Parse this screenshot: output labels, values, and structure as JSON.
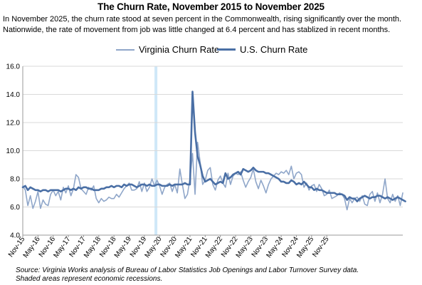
{
  "chart_data": {
    "type": "line",
    "title": "The Churn Rate, November 2015 to November 2025",
    "subtitle": "In November 2025, the churn rate stood at seven percent in the Commonwealth, rising significantly over the month. Nationwide, the rate of movement from job was little changed at 6.4 percent and has stablized in recent months.",
    "source": "Source: Virginia Works analysis of Bureau of Labor Statistics Job Openings and Labor Turnover Survey data.",
    "note": "Shaded areas represent economic recessions.",
    "ylim": [
      4.0,
      16.0
    ],
    "yticks": [
      "4.0",
      "6.0",
      "8.0",
      "10.0",
      "12.0",
      "14.0",
      "16.0"
    ],
    "ytick_values": [
      4,
      6,
      8,
      10,
      12,
      14,
      16
    ],
    "x_tick_labels": [
      "Nov-15",
      "May-16",
      "Nov-16",
      "May-17",
      "Nov-17",
      "May-18",
      "Nov-18",
      "May-19",
      "Nov-19",
      "May-20",
      "Nov-20",
      "May-21",
      "Nov-21",
      "May-22",
      "Nov-22",
      "May-23",
      "Nov-23",
      "May-24",
      "Nov-24",
      "May-25",
      "Nov-25"
    ],
    "recession": {
      "start": "Mar-20",
      "end": "Apr-20",
      "color": "#cfe8f8"
    },
    "grid": true,
    "legend_position": "top-center",
    "series": [
      {
        "name": "Virginia Churn Rate",
        "color": "#8fa6c9",
        "values": [
          7.5,
          7.2,
          6.1,
          6.8,
          5.9,
          6.4,
          7.1,
          5.9,
          6.5,
          6.2,
          6.1,
          6.9,
          7.2,
          6.8,
          7.1,
          6.5,
          7.4,
          7.0,
          7.5,
          6.8,
          7.3,
          8.3,
          8.1,
          7.3,
          7.1,
          6.9,
          7.4,
          7.2,
          7.5,
          6.6,
          6.3,
          6.6,
          6.4,
          6.5,
          6.7,
          6.6,
          6.6,
          6.9,
          6.7,
          7.0,
          7.3,
          7.5,
          7.7,
          7.2,
          7.2,
          7.3,
          7.8,
          7.1,
          7.7,
          7.1,
          7.4,
          8.0,
          7.5,
          7.9,
          7.5,
          6.9,
          7.4,
          7.6,
          7.7,
          7.1,
          7.6,
          7.0,
          8.7,
          7.6,
          6.6,
          6.9,
          8.0,
          9.8,
          6.9,
          10.6,
          9.2,
          7.6,
          7.9,
          8.6,
          8.8,
          7.6,
          7.2,
          7.9,
          8.2,
          7.7,
          7.4,
          8.4,
          7.6,
          8.2,
          8.4,
          8.3,
          8.5,
          7.9,
          7.4,
          7.8,
          8.1,
          8.7,
          7.8,
          7.3,
          7.9,
          7.5,
          7.0,
          7.6,
          8.0,
          8.2,
          8.4,
          8.3,
          8.5,
          8.4,
          8.6,
          8.3,
          8.9,
          8.0,
          8.4,
          8.5,
          8.3,
          7.4,
          7.7,
          7.2,
          7.5,
          7.6,
          7.1,
          7.6,
          7.3,
          6.8,
          6.9,
          7.2,
          6.6,
          6.7,
          6.8,
          7.0,
          6.9,
          6.6,
          5.8,
          6.6,
          6.3,
          6.6,
          6.7,
          6.4,
          6.8,
          6.2,
          6.1,
          6.9,
          7.1,
          6.4,
          7.0,
          6.3,
          6.9,
          8.0,
          6.6,
          6.3,
          6.9,
          6.4,
          6.8,
          6.1,
          7.0
        ]
      },
      {
        "name": "U.S. Churn Rate",
        "color": "#4a6fa5",
        "values": [
          7.4,
          7.5,
          7.2,
          7.4,
          7.3,
          7.2,
          7.2,
          7.1,
          7.2,
          7.2,
          7.1,
          7.2,
          7.2,
          7.2,
          7.2,
          7.1,
          7.2,
          7.3,
          7.3,
          7.2,
          7.3,
          7.2,
          7.4,
          7.3,
          7.4,
          7.4,
          7.3,
          7.3,
          7.2,
          7.2,
          7.2,
          7.3,
          7.3,
          7.4,
          7.4,
          7.5,
          7.4,
          7.5,
          7.5,
          7.4,
          7.6,
          7.5,
          7.6,
          7.6,
          7.5,
          7.4,
          7.5,
          7.6,
          7.6,
          7.5,
          7.6,
          7.5,
          7.5,
          7.6,
          7.6,
          7.5,
          7.5,
          7.5,
          7.6,
          7.5,
          7.6,
          7.6,
          7.6,
          7.6,
          7.7,
          7.6,
          7.6,
          14.2,
          11.3,
          9.6,
          9.0,
          8.2,
          7.8,
          7.9,
          8.0,
          7.8,
          7.6,
          7.7,
          7.8,
          7.7,
          8.4,
          8.0,
          8.1,
          8.3,
          8.4,
          8.5,
          8.3,
          8.7,
          8.6,
          8.5,
          8.6,
          8.8,
          8.6,
          8.5,
          8.5,
          8.5,
          8.4,
          8.4,
          8.3,
          8.2,
          8.1,
          8.0,
          7.8,
          7.8,
          7.7,
          7.7,
          7.9,
          7.8,
          7.6,
          7.7,
          7.6,
          7.8,
          7.6,
          7.4,
          7.4,
          7.2,
          7.3,
          7.2,
          7.2,
          7.1,
          7.0,
          7.0,
          7.0,
          7.0,
          6.9,
          6.9,
          6.9,
          6.8,
          6.5,
          6.7,
          6.6,
          6.6,
          6.4,
          6.6,
          6.7,
          6.8,
          6.7,
          6.6,
          6.7,
          6.7,
          6.8,
          6.8,
          6.7,
          6.6,
          6.7,
          6.6,
          6.5,
          6.6,
          6.7,
          6.6,
          6.5,
          6.4
        ]
      }
    ]
  }
}
